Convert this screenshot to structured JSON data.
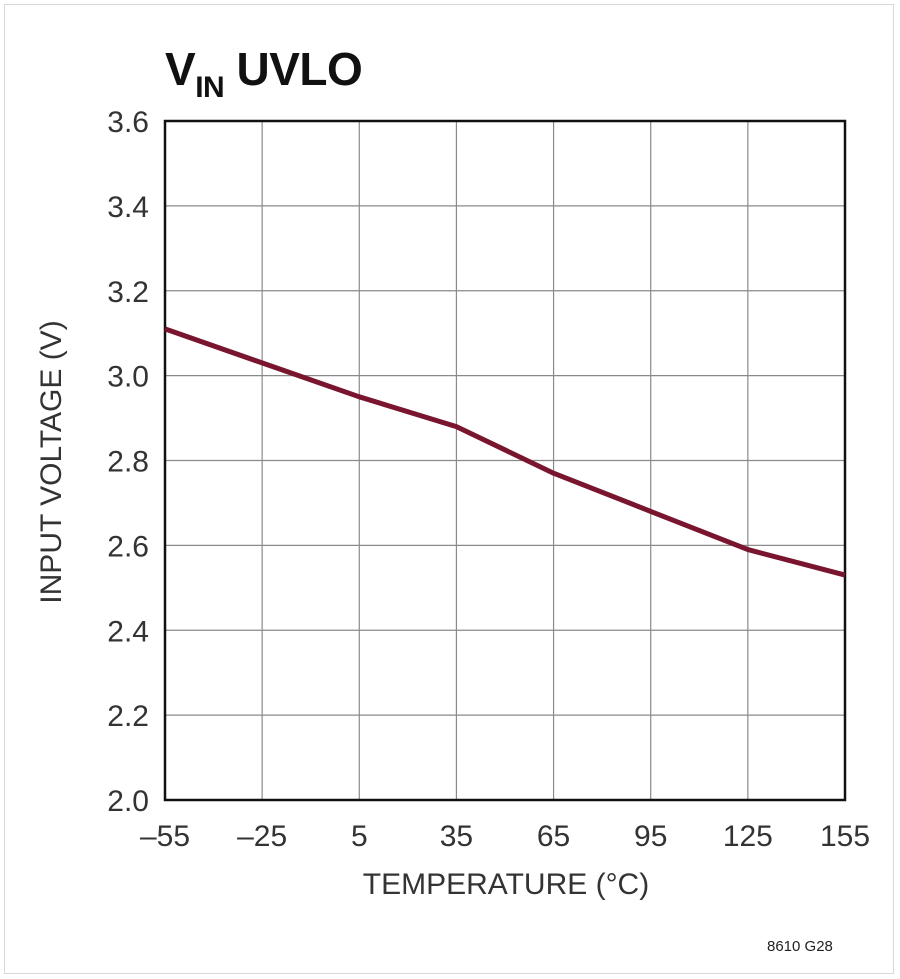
{
  "chart_data": {
    "type": "line",
    "title": "V",
    "title_subscript": "IN",
    "title_suffix": " UVLO",
    "xlabel": "TEMPERATURE (°C)",
    "ylabel": "INPUT VOLTAGE (V)",
    "xlim": [
      -55,
      155
    ],
    "ylim": [
      2.0,
      3.6
    ],
    "x_ticks": [
      -55,
      -25,
      5,
      35,
      65,
      95,
      125,
      155
    ],
    "x_tick_labels": [
      "–55",
      "–25",
      "5",
      "35",
      "65",
      "95",
      "125",
      "155"
    ],
    "y_ticks": [
      2.0,
      2.2,
      2.4,
      2.6,
      2.8,
      3.0,
      3.2,
      3.4,
      3.6
    ],
    "y_tick_labels": [
      "2.0",
      "2.2",
      "2.4",
      "2.6",
      "2.8",
      "3.0",
      "3.2",
      "3.4",
      "3.6"
    ],
    "grid": true,
    "series": [
      {
        "color": "#7a1530",
        "x": [
          -55,
          -25,
          5,
          35,
          65,
          95,
          125,
          155
        ],
        "y": [
          3.11,
          3.03,
          2.95,
          2.88,
          2.77,
          2.68,
          2.59,
          2.53
        ]
      }
    ],
    "note": "8610 G28"
  }
}
